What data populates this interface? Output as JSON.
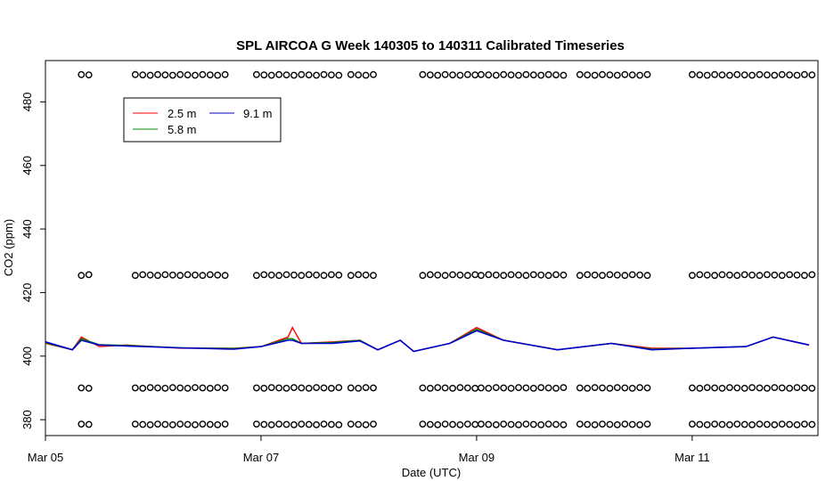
{
  "chart_data": {
    "type": "line",
    "title": "SPL AIRCOA G  Week 140305 to 140311  Calibrated Timeseries",
    "xlabel": "Date (UTC)",
    "ylabel": "CO2 (ppm)",
    "xlim": [
      "2014-03-05T00:00",
      "2014-03-12T04:00"
    ],
    "ylim": [
      375,
      493
    ],
    "grid": false,
    "legend_position": "top-left",
    "xticks": [
      {
        "label": "Mar 05",
        "value": "2014-03-05T00:00"
      },
      {
        "label": "Mar 07",
        "value": "2014-03-07T00:00"
      },
      {
        "label": "Mar 09",
        "value": "2014-03-09T00:00"
      },
      {
        "label": "Mar 11",
        "value": "2014-03-11T00:00"
      }
    ],
    "yticks": [
      380,
      400,
      420,
      440,
      460,
      480
    ],
    "series": [
      {
        "name": "2.5 m",
        "color": "#ff0000",
        "x": [
          "2014-03-05T00:00",
          "2014-03-05T06:00",
          "2014-03-05T08:00",
          "2014-03-05T12:00",
          "2014-03-05T18:00",
          "2014-03-06T06:00",
          "2014-03-06T18:00",
          "2014-03-07T00:00",
          "2014-03-07T06:00",
          "2014-03-07T07:00",
          "2014-03-07T09:00",
          "2014-03-07T16:00",
          "2014-03-07T22:00",
          "2014-03-08T02:00",
          "2014-03-08T07:00",
          "2014-03-08T10:00",
          "2014-03-08T18:00",
          "2014-03-09T00:00",
          "2014-03-09T06:00",
          "2014-03-09T18:00",
          "2014-03-10T06:00",
          "2014-03-10T15:00",
          "2014-03-11T00:00",
          "2014-03-11T12:00",
          "2014-03-11T18:00",
          "2014-03-12T02:00"
        ],
        "values": [
          404,
          402,
          406,
          403,
          403.5,
          402.5,
          402.5,
          403,
          406,
          409,
          404,
          404.5,
          405,
          402,
          405,
          401.5,
          404,
          409,
          405,
          402,
          404,
          402.5,
          402.5,
          403,
          406,
          403.5
        ]
      },
      {
        "name": "5.8 m",
        "color": "#008800",
        "x": [
          "2014-03-05T00:00",
          "2014-03-05T06:00",
          "2014-03-05T08:00",
          "2014-03-05T12:00",
          "2014-03-05T18:00",
          "2014-03-06T06:00",
          "2014-03-06T18:00",
          "2014-03-07T00:00",
          "2014-03-07T06:00",
          "2014-03-07T07:00",
          "2014-03-07T09:00",
          "2014-03-07T16:00",
          "2014-03-07T22:00",
          "2014-03-08T02:00",
          "2014-03-08T07:00",
          "2014-03-08T10:00",
          "2014-03-08T18:00",
          "2014-03-09T00:00",
          "2014-03-09T06:00",
          "2014-03-09T18:00",
          "2014-03-10T06:00",
          "2014-03-10T15:00",
          "2014-03-11T00:00",
          "2014-03-11T12:00",
          "2014-03-11T18:00",
          "2014-03-12T02:00"
        ],
        "values": [
          404.2,
          402,
          405.5,
          403.6,
          403.4,
          402.6,
          402.4,
          403,
          405.5,
          405.5,
          404,
          404.3,
          405,
          402,
          405,
          401.5,
          404,
          408.5,
          405,
          402,
          404,
          402.2,
          402.5,
          403,
          406,
          403.5
        ]
      },
      {
        "name": "9.1 m",
        "color": "#0000cc",
        "x": [
          "2014-03-05T00:00",
          "2014-03-05T06:00",
          "2014-03-05T08:00",
          "2014-03-05T12:00",
          "2014-03-05T18:00",
          "2014-03-06T06:00",
          "2014-03-06T18:00",
          "2014-03-07T00:00",
          "2014-03-07T06:00",
          "2014-03-07T07:00",
          "2014-03-07T09:00",
          "2014-03-07T16:00",
          "2014-03-07T22:00",
          "2014-03-08T02:00",
          "2014-03-08T07:00",
          "2014-03-08T10:00",
          "2014-03-08T18:00",
          "2014-03-09T00:00",
          "2014-03-09T06:00",
          "2014-03-09T18:00",
          "2014-03-10T06:00",
          "2014-03-10T15:00",
          "2014-03-11T00:00",
          "2014-03-11T12:00",
          "2014-03-11T18:00",
          "2014-03-12T02:00"
        ],
        "values": [
          404.5,
          402,
          405,
          403.5,
          403.2,
          402.6,
          402.2,
          403,
          405,
          405,
          404,
          404,
          404.8,
          402,
          405,
          401.5,
          404,
          408,
          405,
          402,
          404,
          402,
          402.5,
          403,
          406,
          403.5
        ]
      }
    ],
    "calibration_markers": {
      "marker": "open-circle",
      "levels": [
        378.5,
        390,
        425.5,
        488.5
      ],
      "groups": [
        {
          "from": "2014-03-05T08:00",
          "to": "2014-03-05T11:00"
        },
        {
          "from": "2014-03-05T20:00",
          "to": "2014-03-06T16:00"
        },
        {
          "from": "2014-03-06T23:00",
          "to": "2014-03-07T18:00"
        },
        {
          "from": "2014-03-07T20:00",
          "to": "2014-03-08T02:00"
        },
        {
          "from": "2014-03-08T12:00",
          "to": "2014-03-09T00:00"
        },
        {
          "from": "2014-03-09T01:00",
          "to": "2014-03-09T20:00"
        },
        {
          "from": "2014-03-09T23:00",
          "to": "2014-03-10T14:00"
        },
        {
          "from": "2014-03-11T00:00",
          "to": "2014-03-12T03:00"
        }
      ]
    }
  }
}
